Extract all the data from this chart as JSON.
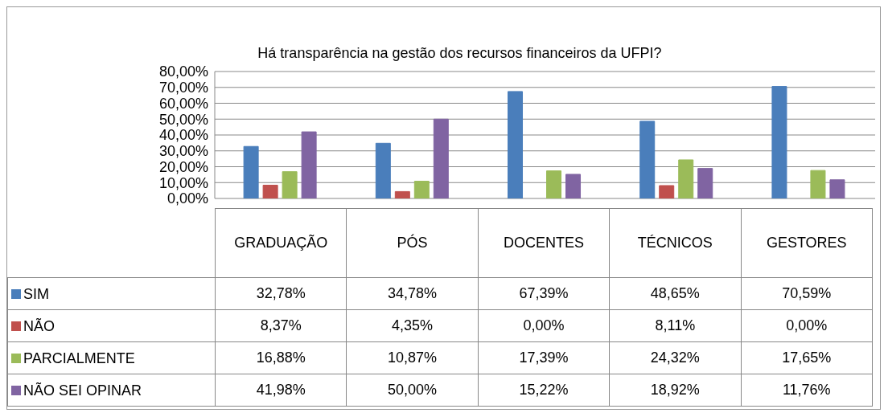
{
  "chart_data": {
    "type": "bar",
    "title": "Há transparência na gestão dos recursos financeiros da UFPI?",
    "categories": [
      "GRADUAÇÃO",
      "PÓS",
      "DOCENTES",
      "TÉCNICOS",
      "GESTORES"
    ],
    "series": [
      {
        "name": "SIM",
        "color": "#4a7ebb",
        "values": [
          32.78,
          34.78,
          67.39,
          48.65,
          70.59
        ],
        "value_labels": [
          "32,78%",
          "34,78%",
          "67,39%",
          "48,65%",
          "70,59%"
        ]
      },
      {
        "name": "NÃO",
        "color": "#c0504d",
        "values": [
          8.37,
          4.35,
          0,
          8.11,
          0
        ],
        "value_labels": [
          "8,37%",
          "4,35%",
          "0,00%",
          "8,11%",
          "0,00%"
        ]
      },
      {
        "name": "PARCIALMENTE",
        "color": "#9bbb59",
        "values": [
          16.88,
          10.87,
          17.39,
          24.32,
          17.65
        ],
        "value_labels": [
          "16,88%",
          "10,87%",
          "17,39%",
          "24,32%",
          "17,65%"
        ]
      },
      {
        "name": "NÃO SEI OPINAR",
        "color": "#8064a2",
        "values": [
          41.98,
          50,
          15.22,
          18.92,
          11.76
        ],
        "value_labels": [
          "41,98%",
          "50,00%",
          "15,22%",
          "18,92%",
          "11,76%"
        ]
      }
    ],
    "ylim": [
      0,
      80
    ],
    "yticks": [
      {
        "value": 0,
        "label": "0,00%"
      },
      {
        "value": 10,
        "label": "10,00%"
      },
      {
        "value": 20,
        "label": "20,00%"
      },
      {
        "value": 30,
        "label": "30,00%"
      },
      {
        "value": 40,
        "label": "40,00%"
      },
      {
        "value": 50,
        "label": "50,00%"
      },
      {
        "value": 60,
        "label": "60,00%"
      },
      {
        "value": 70,
        "label": "70,00%"
      },
      {
        "value": 80,
        "label": "80,00%"
      }
    ],
    "grid": "y",
    "legend": "bottom"
  }
}
